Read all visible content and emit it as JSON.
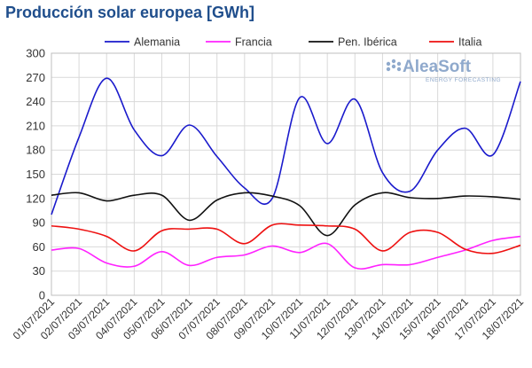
{
  "chart_data": {
    "type": "line",
    "title": "Producción solar europea [GWh]",
    "xlabel": "",
    "ylabel": "",
    "ylim": [
      0,
      300
    ],
    "yticks": [
      0,
      30,
      60,
      90,
      120,
      150,
      180,
      210,
      240,
      270,
      300
    ],
    "grid": true,
    "legend_position": "top",
    "categories": [
      "01/07/2021",
      "02/07/2021",
      "03/07/2021",
      "04/07/2021",
      "05/07/2021",
      "06/07/2021",
      "07/07/2021",
      "08/07/2021",
      "09/07/2021",
      "10/07/2021",
      "11/07/2021",
      "12/07/2021",
      "13/07/2021",
      "14/07/2021",
      "15/07/2021",
      "16/07/2021",
      "17/07/2021",
      "18/07/2021"
    ],
    "series": [
      {
        "name": "Alemania",
        "color": "#1a1acc",
        "values": [
          100,
          196,
          269,
          205,
          173,
          211,
          172,
          133,
          120,
          245,
          188,
          243,
          152,
          129,
          180,
          207,
          174,
          265
        ]
      },
      {
        "name": "Francia",
        "color": "#ff22ff",
        "values": [
          56,
          58,
          40,
          36,
          54,
          37,
          47,
          50,
          61,
          53,
          64,
          34,
          38,
          38,
          47,
          56,
          68,
          73
        ]
      },
      {
        "name": "Pen. Ibérica",
        "color": "#111111",
        "values": [
          124,
          127,
          117,
          124,
          124,
          93,
          118,
          127,
          123,
          111,
          74,
          112,
          127,
          121,
          120,
          123,
          122,
          119
        ]
      },
      {
        "name": "Italia",
        "color": "#ee1111",
        "values": [
          86,
          82,
          73,
          55,
          80,
          82,
          82,
          64,
          87,
          87,
          86,
          82,
          55,
          78,
          78,
          57,
          52,
          62
        ]
      }
    ]
  },
  "watermark": {
    "brand": "AleaSoft",
    "tagline": "ENERGY FORECASTING"
  }
}
